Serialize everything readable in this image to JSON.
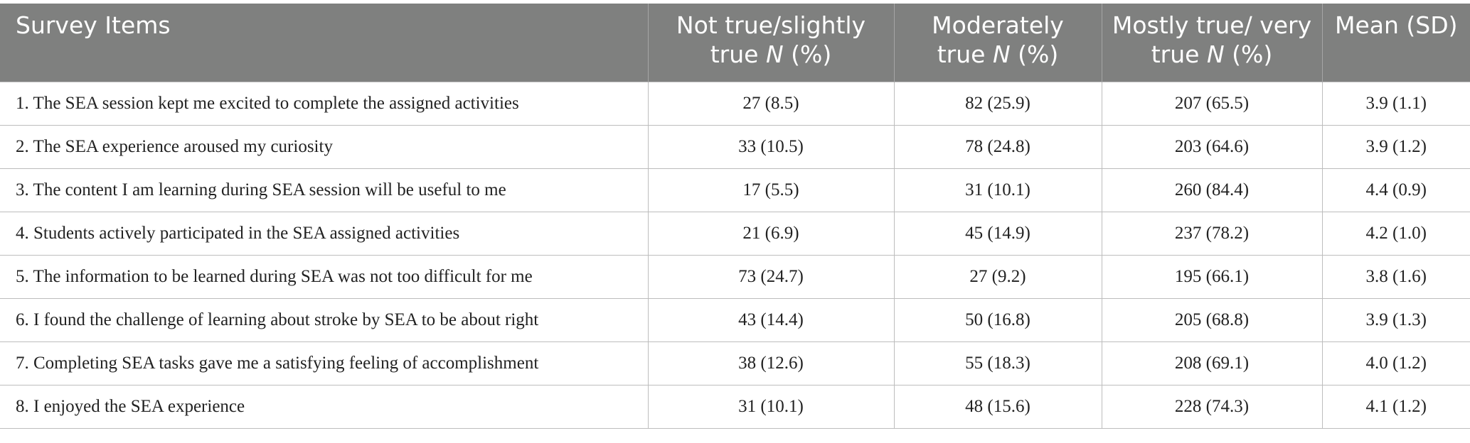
{
  "table": {
    "header": [
      {
        "pre": "Survey Items",
        "em": "",
        "post": ""
      },
      {
        "pre": "Not true/slightly true ",
        "em": "N",
        "post": " (%)"
      },
      {
        "pre": "Moderately true ",
        "em": "N",
        "post": " (%)"
      },
      {
        "pre": "Mostly true/ very true ",
        "em": "N",
        "post": " (%)"
      },
      {
        "pre": "Mean (SD)",
        "em": "",
        "post": ""
      }
    ],
    "rows": [
      [
        "1. The SEA session kept me excited to complete the assigned activities",
        "27 (8.5)",
        "82 (25.9)",
        "207 (65.5)",
        "3.9 (1.1)"
      ],
      [
        "2. The SEA experience aroused my curiosity",
        "33 (10.5)",
        "78 (24.8)",
        "203 (64.6)",
        "3.9 (1.2)"
      ],
      [
        "3. The content I am learning during SEA session will be useful to me",
        "17 (5.5)",
        "31 (10.1)",
        "260 (84.4)",
        "4.4 (0.9)"
      ],
      [
        "4. Students actively participated in the SEA assigned activities",
        "21 (6.9)",
        "45 (14.9)",
        "237 (78.2)",
        "4.2 (1.0)"
      ],
      [
        "5. The information to be learned during SEA was not too difficult for me",
        "73 (24.7)",
        "27 (9.2)",
        "195 (66.1)",
        "3.8 (1.6)"
      ],
      [
        "6. I found the challenge of learning about stroke by SEA to be about right",
        "43 (14.4)",
        "50 (16.8)",
        "205 (68.8)",
        "3.9 (1.3)"
      ],
      [
        "7. Completing SEA tasks gave me a satisfying feeling of accomplishment",
        "38 (12.6)",
        "55 (18.3)",
        "208 (69.1)",
        "4.0 (1.2)"
      ],
      [
        "8. I enjoyed the SEA experience",
        "31 (10.1)",
        "48 (15.6)",
        "228 (74.3)",
        "4.1 (1.2)"
      ]
    ]
  }
}
